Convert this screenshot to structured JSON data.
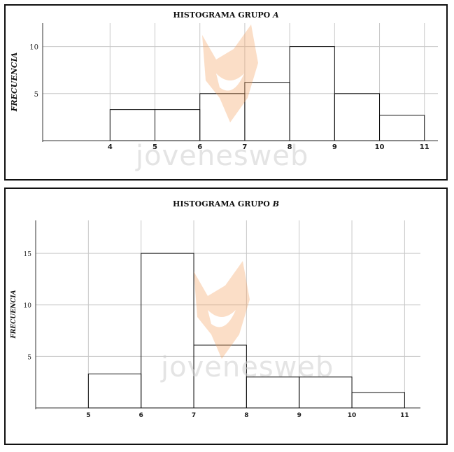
{
  "watermark": {
    "text": "jovenesweb"
  },
  "colors": {
    "grid": "#c8c8c8",
    "bar_stroke": "#111111",
    "axis": "#333333",
    "fox": "#f4a261"
  },
  "chart_data": [
    {
      "type": "bar",
      "title": "HISTOGRAMA GRUPO",
      "title_group": "A",
      "ylabel": "FRECUENCIA",
      "xlabel": "",
      "bins": [
        {
          "from": 4,
          "to": 5,
          "value": 3.3
        },
        {
          "from": 5,
          "to": 6,
          "value": 3.3
        },
        {
          "from": 6,
          "to": 7,
          "value": 5
        },
        {
          "from": 7,
          "to": 8,
          "value": 6.2
        },
        {
          "from": 8,
          "to": 9,
          "value": 10
        },
        {
          "from": 9,
          "to": 10,
          "value": 5
        },
        {
          "from": 10,
          "to": 11,
          "value": 2.7
        }
      ],
      "x_ticks": [
        4,
        5,
        6,
        7,
        8,
        9,
        10,
        11
      ],
      "y_ticks": [
        5,
        10
      ],
      "xlim": [
        2.5,
        11.3
      ],
      "ylim": [
        0,
        12.5
      ],
      "grid": true
    },
    {
      "type": "bar",
      "title": "HISTOGRAMA GRUPO",
      "title_group": "B",
      "ylabel": "FRECUENCIA",
      "xlabel": "",
      "bins": [
        {
          "from": 5,
          "to": 6,
          "value": 3.3
        },
        {
          "from": 6,
          "to": 7,
          "value": 15
        },
        {
          "from": 7,
          "to": 8,
          "value": 6.1
        },
        {
          "from": 8,
          "to": 9,
          "value": 3
        },
        {
          "from": 9,
          "to": 10,
          "value": 3
        },
        {
          "from": 10,
          "to": 11,
          "value": 1.5
        }
      ],
      "x_ticks": [
        5,
        6,
        7,
        8,
        9,
        10,
        11
      ],
      "y_ticks": [
        5,
        10,
        15
      ],
      "xlim": [
        4,
        11.3
      ],
      "ylim": [
        0,
        18.2
      ],
      "grid": true
    }
  ]
}
